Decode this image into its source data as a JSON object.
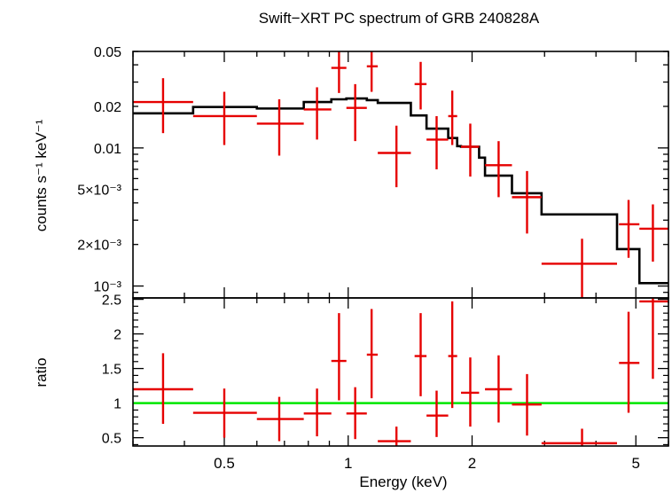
{
  "colors": {
    "data": "#e60000",
    "model": "#000000",
    "unity": "#00e600",
    "frame": "#000000"
  },
  "chart_data": [
    {
      "type": "scatter",
      "title": "Swift−XRT PC spectrum of GRB 240828A",
      "ylabel": "counts s⁻¹ keV⁻¹",
      "xscale": "log",
      "yscale": "log",
      "xlim": [
        0.3,
        6.0
      ],
      "ylim": [
        0.00082,
        0.05
      ],
      "yticks": [
        {
          "v": 0.05,
          "label": "0.05"
        },
        {
          "v": 0.02,
          "label": "0.02"
        },
        {
          "v": 0.01,
          "label": "0.01"
        },
        {
          "v": 0.005,
          "label": "5×10⁻³"
        },
        {
          "v": 0.002,
          "label": "2×10⁻³"
        },
        {
          "v": 0.001,
          "label": "10⁻³"
        }
      ],
      "series": [
        {
          "kind": "errorbar",
          "points": [
            {
              "x": 0.355,
              "xlo": 0.3,
              "xhi": 0.42,
              "y": 0.0215,
              "ylo": 0.0128,
              "yhi": 0.032
            },
            {
              "x": 0.5,
              "xlo": 0.42,
              "xhi": 0.6,
              "y": 0.017,
              "ylo": 0.0105,
              "yhi": 0.0255
            },
            {
              "x": 0.68,
              "xlo": 0.6,
              "xhi": 0.78,
              "y": 0.015,
              "ylo": 0.0088,
              "yhi": 0.0225
            },
            {
              "x": 0.84,
              "xlo": 0.78,
              "xhi": 0.91,
              "y": 0.019,
              "ylo": 0.0115,
              "yhi": 0.0275
            },
            {
              "x": 0.95,
              "xlo": 0.91,
              "xhi": 0.99,
              "y": 0.038,
              "ylo": 0.025,
              "yhi": 0.055
            },
            {
              "x": 1.04,
              "xlo": 0.99,
              "xhi": 1.11,
              "y": 0.0195,
              "ylo": 0.0112,
              "yhi": 0.029
            },
            {
              "x": 1.14,
              "xlo": 1.11,
              "xhi": 1.18,
              "y": 0.039,
              "ylo": 0.0255,
              "yhi": 0.055
            },
            {
              "x": 1.31,
              "xlo": 1.18,
              "xhi": 1.42,
              "y": 0.0092,
              "ylo": 0.0052,
              "yhi": 0.0145
            },
            {
              "x": 1.5,
              "xlo": 1.45,
              "xhi": 1.55,
              "y": 0.029,
              "ylo": 0.019,
              "yhi": 0.042
            },
            {
              "x": 1.64,
              "xlo": 1.55,
              "xhi": 1.75,
              "y": 0.0115,
              "ylo": 0.007,
              "yhi": 0.017
            },
            {
              "x": 1.79,
              "xlo": 1.75,
              "xhi": 1.84,
              "y": 0.017,
              "ylo": 0.0105,
              "yhi": 0.026
            },
            {
              "x": 1.98,
              "xlo": 1.88,
              "xhi": 2.08,
              "y": 0.0102,
              "ylo": 0.0062,
              "yhi": 0.015
            },
            {
              "x": 2.32,
              "xlo": 2.15,
              "xhi": 2.5,
              "y": 0.0075,
              "ylo": 0.0044,
              "yhi": 0.0112
            },
            {
              "x": 2.72,
              "xlo": 2.5,
              "xhi": 2.95,
              "y": 0.0044,
              "ylo": 0.0024,
              "yhi": 0.0068
            },
            {
              "x": 3.7,
              "xlo": 2.95,
              "xhi": 4.5,
              "y": 0.00145,
              "ylo": 0.00082,
              "yhi": 0.0022
            },
            {
              "x": 4.8,
              "xlo": 4.55,
              "xhi": 5.1,
              "y": 0.0028,
              "ylo": 0.0016,
              "yhi": 0.0042
            },
            {
              "x": 5.5,
              "xlo": 5.1,
              "xhi": 6.0,
              "y": 0.0026,
              "ylo": 0.0015,
              "yhi": 0.0039
            }
          ]
        },
        {
          "kind": "model-step",
          "edges": [
            0.3,
            0.42,
            0.6,
            0.78,
            0.91,
            0.99,
            1.11,
            1.18,
            1.42,
            1.55,
            1.75,
            1.84,
            1.88,
            2.08,
            2.15,
            2.5,
            2.95,
            4.5,
            5.1,
            6.0
          ],
          "values": [
            0.0178,
            0.0198,
            0.0193,
            0.0215,
            0.0225,
            0.0228,
            0.0222,
            0.0212,
            0.0172,
            0.0138,
            0.0118,
            0.0103,
            0.0102,
            0.0085,
            0.0063,
            0.0047,
            0.0033,
            0.00185,
            0.00105
          ]
        }
      ]
    },
    {
      "type": "scatter",
      "ylabel": "ratio",
      "xlabel": "Energy (keV)",
      "xscale": "log",
      "xlim": [
        0.3,
        6.0
      ],
      "ylim": [
        0.38,
        2.52
      ],
      "xticks": [
        {
          "v": 0.5,
          "label": "0.5"
        },
        {
          "v": 1,
          "label": "1"
        },
        {
          "v": 2,
          "label": "2"
        },
        {
          "v": 5,
          "label": "5"
        }
      ],
      "yticks": [
        {
          "v": 0.5,
          "label": "0.5"
        },
        {
          "v": 1,
          "label": "1"
        },
        {
          "v": 1.5,
          "label": "1.5"
        },
        {
          "v": 2,
          "label": "2"
        },
        {
          "v": 2.5,
          "label": "2.5"
        }
      ],
      "unity": 1,
      "series": [
        {
          "kind": "errorbar",
          "points": [
            {
              "x": 0.355,
              "xlo": 0.3,
              "xhi": 0.42,
              "y": 1.2,
              "ylo": 0.7,
              "yhi": 1.72
            },
            {
              "x": 0.5,
              "xlo": 0.42,
              "xhi": 0.6,
              "y": 0.86,
              "ylo": 0.5,
              "yhi": 1.21
            },
            {
              "x": 0.68,
              "xlo": 0.6,
              "xhi": 0.78,
              "y": 0.77,
              "ylo": 0.45,
              "yhi": 1.09
            },
            {
              "x": 0.84,
              "xlo": 0.78,
              "xhi": 0.91,
              "y": 0.85,
              "ylo": 0.52,
              "yhi": 1.21
            },
            {
              "x": 0.95,
              "xlo": 0.91,
              "xhi": 0.99,
              "y": 1.61,
              "ylo": 1.04,
              "yhi": 2.3
            },
            {
              "x": 1.04,
              "xlo": 0.99,
              "xhi": 1.11,
              "y": 0.85,
              "ylo": 0.48,
              "yhi": 1.23
            },
            {
              "x": 1.14,
              "xlo": 1.11,
              "xhi": 1.18,
              "y": 1.7,
              "ylo": 1.07,
              "yhi": 2.36
            },
            {
              "x": 1.31,
              "xlo": 1.18,
              "xhi": 1.42,
              "y": 0.45,
              "ylo": 0.38,
              "yhi": 0.66
            },
            {
              "x": 1.5,
              "xlo": 1.45,
              "xhi": 1.55,
              "y": 1.68,
              "ylo": 1.1,
              "yhi": 2.3
            },
            {
              "x": 1.64,
              "xlo": 1.55,
              "xhi": 1.75,
              "y": 0.82,
              "ylo": 0.51,
              "yhi": 1.18
            },
            {
              "x": 1.79,
              "xlo": 1.75,
              "xhi": 1.84,
              "y": 1.68,
              "ylo": 0.93,
              "yhi": 2.47
            },
            {
              "x": 1.98,
              "xlo": 1.88,
              "xhi": 2.08,
              "y": 1.15,
              "ylo": 0.66,
              "yhi": 1.66
            },
            {
              "x": 2.32,
              "xlo": 2.15,
              "xhi": 2.5,
              "y": 1.2,
              "ylo": 0.72,
              "yhi": 1.69
            },
            {
              "x": 2.72,
              "xlo": 2.5,
              "xhi": 2.95,
              "y": 0.98,
              "ylo": 0.53,
              "yhi": 1.42
            },
            {
              "x": 3.7,
              "xlo": 2.95,
              "xhi": 4.5,
              "y": 0.42,
              "ylo": 0.38,
              "yhi": 0.63
            },
            {
              "x": 4.8,
              "xlo": 4.55,
              "xhi": 5.1,
              "y": 1.58,
              "ylo": 0.86,
              "yhi": 2.32
            },
            {
              "x": 5.5,
              "xlo": 5.1,
              "xhi": 6.0,
              "y": 2.47,
              "ylo": 1.35,
              "yhi": 2.52
            }
          ]
        }
      ]
    }
  ]
}
